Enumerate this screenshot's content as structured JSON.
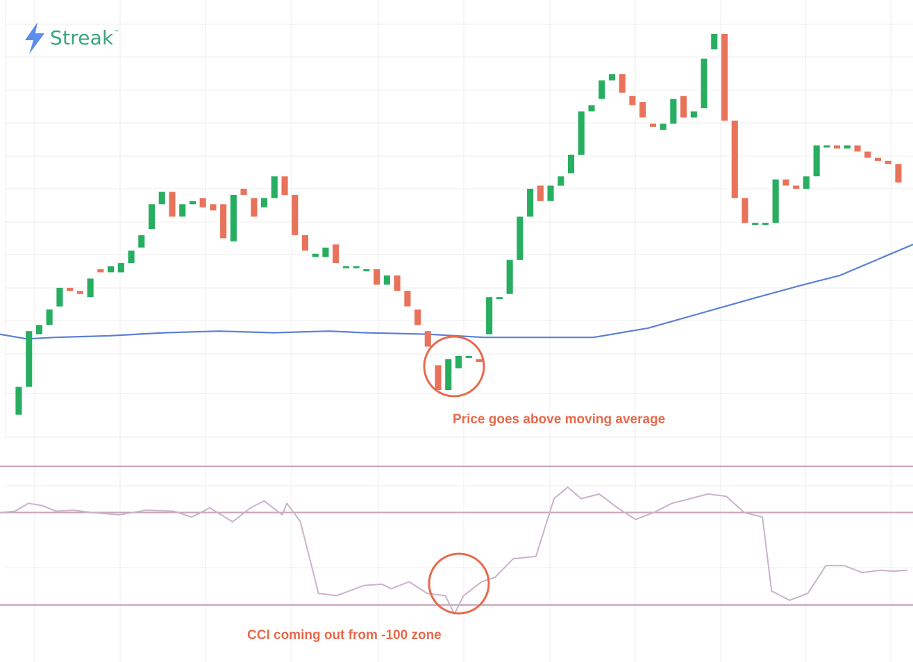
{
  "brand": {
    "name": "Streak",
    "tm": "™",
    "color": "#3aa67a",
    "icon": "lightning-bolt-icon",
    "icon_color": "#5b8def"
  },
  "annotations": {
    "price": "Price goes above moving average",
    "cci": "CCI coming out from -100 zone",
    "color": "#e8694b"
  },
  "colors": {
    "up": "#27ae60",
    "down": "#e8735a",
    "ma": "#5b7fd6",
    "cci": "#c9b3c9",
    "cci_levels": "#c8a6ba",
    "grid": "#ececec"
  },
  "chart_data": [
    {
      "type": "candlestick",
      "panel": "price",
      "title": "",
      "xlabel": "",
      "ylabel": "",
      "ylim": [
        0,
        100
      ],
      "grid": true,
      "candles": [
        {
          "o": 5,
          "c": 14
        },
        {
          "o": 14,
          "c": 32
        },
        {
          "o": 31,
          "c": 34
        },
        {
          "o": 34,
          "c": 39
        },
        {
          "o": 40,
          "c": 46
        },
        {
          "o": 46,
          "c": 45
        },
        {
          "o": 45,
          "c": 44
        },
        {
          "o": 43,
          "c": 49
        },
        {
          "o": 52,
          "c": 51
        },
        {
          "o": 51,
          "c": 53
        },
        {
          "o": 51,
          "c": 54
        },
        {
          "o": 54,
          "c": 58
        },
        {
          "o": 59,
          "c": 63
        },
        {
          "o": 65,
          "c": 73
        },
        {
          "o": 73,
          "c": 77
        },
        {
          "o": 77,
          "c": 69
        },
        {
          "o": 69,
          "c": 73
        },
        {
          "o": 73,
          "c": 74
        },
        {
          "o": 75,
          "c": 72
        },
        {
          "o": 73,
          "c": 71
        },
        {
          "o": 73,
          "c": 62
        },
        {
          "o": 61,
          "c": 76
        },
        {
          "o": 78,
          "c": 76
        },
        {
          "o": 75,
          "c": 69
        },
        {
          "o": 72,
          "c": 75
        },
        {
          "o": 75,
          "c": 82
        },
        {
          "o": 82,
          "c": 76
        },
        {
          "o": 76,
          "c": 63
        },
        {
          "o": 63,
          "c": 58
        },
        {
          "o": 56,
          "c": 57
        },
        {
          "o": 56,
          "c": 59
        },
        {
          "o": 60,
          "c": 54
        },
        {
          "o": 53,
          "c": 53
        },
        {
          "o": 53,
          "c": 53
        },
        {
          "o": 52,
          "c": 52
        },
        {
          "o": 52,
          "c": 47
        },
        {
          "o": 47,
          "c": 50
        },
        {
          "o": 50,
          "c": 45
        },
        {
          "o": 45,
          "c": 40
        },
        {
          "o": 39,
          "c": 34
        },
        {
          "o": 32,
          "c": 27
        },
        {
          "o": 21,
          "c": 13
        },
        {
          "o": 13,
          "c": 23
        },
        {
          "o": 20,
          "c": 24
        },
        {
          "o": 24,
          "c": 24
        },
        {
          "o": 23,
          "c": 22
        },
        {
          "o": 31,
          "c": 43
        },
        {
          "o": 43,
          "c": 43
        },
        {
          "o": 44,
          "c": 55
        },
        {
          "o": 55,
          "c": 69
        },
        {
          "o": 69,
          "c": 78
        },
        {
          "o": 79,
          "c": 74
        },
        {
          "o": 74,
          "c": 79
        },
        {
          "o": 79,
          "c": 82
        },
        {
          "o": 83,
          "c": 89
        },
        {
          "o": 89,
          "c": 103
        },
        {
          "o": 103,
          "c": 105
        },
        {
          "o": 107,
          "c": 113
        },
        {
          "o": 113,
          "c": 115
        },
        {
          "o": 115,
          "c": 109
        },
        {
          "o": 108,
          "c": 105
        },
        {
          "o": 106,
          "c": 101
        },
        {
          "o": 99,
          "c": 98
        },
        {
          "o": 97,
          "c": 99
        },
        {
          "o": 99,
          "c": 107
        },
        {
          "o": 108,
          "c": 101
        },
        {
          "o": 101,
          "c": 103
        },
        {
          "o": 104,
          "c": 120
        },
        {
          "o": 123,
          "c": 128
        },
        {
          "o": 128,
          "c": 100
        },
        {
          "o": 100,
          "c": 75
        },
        {
          "o": 75,
          "c": 67
        },
        {
          "o": 67,
          "c": 67
        },
        {
          "o": 67,
          "c": 67
        },
        {
          "o": 67,
          "c": 81
        },
        {
          "o": 81,
          "c": 79
        },
        {
          "o": 79,
          "c": 78
        },
        {
          "o": 78,
          "c": 82
        },
        {
          "o": 82,
          "c": 92
        },
        {
          "o": 92,
          "c": 92
        },
        {
          "o": 92,
          "c": 91
        },
        {
          "o": 91,
          "c": 92
        },
        {
          "o": 92,
          "c": 90
        },
        {
          "o": 90,
          "c": 88
        },
        {
          "o": 88,
          "c": 87
        },
        {
          "o": 87,
          "c": 86
        },
        {
          "o": 86,
          "c": 80
        }
      ],
      "moving_average": {
        "name": "",
        "x_frac": [
          0,
          0.03,
          0.06,
          0.12,
          0.18,
          0.24,
          0.3,
          0.36,
          0.4,
          0.47,
          0.53,
          0.59,
          0.65,
          0.71,
          0.77,
          0.83,
          0.88,
          0.92,
          0.96,
          1.0
        ],
        "values": [
          31,
          29.5,
          30,
          30.5,
          31.5,
          32,
          31.5,
          32,
          31.5,
          31,
          30,
          30,
          30,
          33,
          38,
          43,
          47,
          50,
          55,
          60
        ]
      }
    },
    {
      "type": "line",
      "panel": "cci",
      "title": "",
      "xlabel": "",
      "ylabel": "",
      "ylim": [
        -150,
        200
      ],
      "levels": [
        200,
        100,
        -100
      ],
      "x_frac": [
        0,
        0.015,
        0.03,
        0.045,
        0.06,
        0.08,
        0.1,
        0.13,
        0.16,
        0.19,
        0.21,
        0.23,
        0.255,
        0.275,
        0.29,
        0.31,
        0.315,
        0.33,
        0.35,
        0.37,
        0.4,
        0.42,
        0.43,
        0.45,
        0.47,
        0.49,
        0.5,
        0.51,
        0.53,
        0.545,
        0.565,
        0.59,
        0.61,
        0.625,
        0.64,
        0.66,
        0.68,
        0.7,
        0.72,
        0.74,
        0.76,
        0.78,
        0.8,
        0.82,
        0.84,
        0.85,
        0.87,
        0.89,
        0.91,
        0.93,
        0.95,
        0.97,
        0.985,
        1.0
      ],
      "values": [
        100,
        103,
        120,
        115,
        103,
        105,
        100,
        95,
        105,
        103,
        90,
        110,
        80,
        110,
        125,
        95,
        120,
        80,
        -75,
        -80,
        -58,
        -55,
        -65,
        -50,
        -75,
        -80,
        -120,
        -80,
        -50,
        -40,
        0,
        5,
        130,
        155,
        130,
        140,
        110,
        85,
        100,
        120,
        130,
        140,
        135,
        100,
        90,
        -70,
        -90,
        -75,
        -15,
        -15,
        -30,
        -25,
        -27,
        -25
      ]
    }
  ]
}
